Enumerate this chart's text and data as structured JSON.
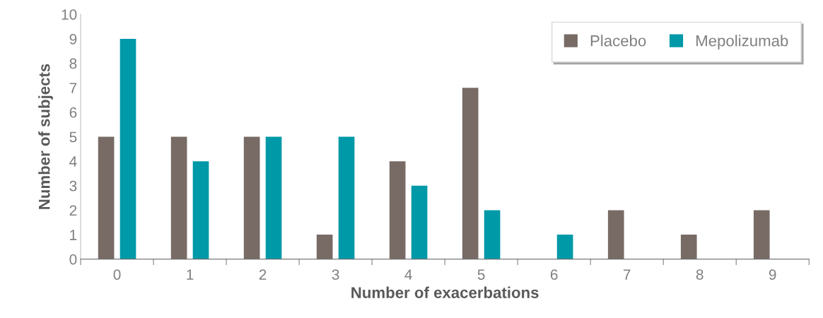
{
  "chart_data": {
    "type": "bar",
    "xlabel": "Number of exacerbations",
    "ylabel": "Number of subjects",
    "categories": [
      "0",
      "1",
      "2",
      "3",
      "4",
      "5",
      "6",
      "7",
      "8",
      "9"
    ],
    "series": [
      {
        "name": "Placebo",
        "color": "#786b66",
        "values": [
          5,
          5,
          5,
          1,
          4,
          7,
          0,
          2,
          1,
          2
        ]
      },
      {
        "name": "Mepolizumab",
        "color": "#0099a8",
        "values": [
          9,
          4,
          5,
          5,
          3,
          2,
          1,
          0,
          0,
          0
        ]
      }
    ],
    "ylim": [
      0,
      10
    ],
    "yticks": [
      0,
      1,
      2,
      3,
      4,
      5,
      6,
      7,
      8,
      9,
      10
    ],
    "grid": false,
    "legend": "top right"
  }
}
